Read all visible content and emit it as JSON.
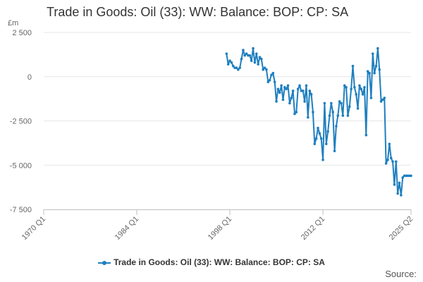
{
  "chart_data": {
    "type": "line",
    "title": "Trade in Goods: Oil (33): WW: Balance: BOP: CP: SA",
    "unit_label": "£m",
    "ylabel": "",
    "xlabel": "",
    "ylim": [
      -7500,
      2500
    ],
    "xlim": [
      1970.0,
      2025.25
    ],
    "y_ticks": [
      {
        "value": 2500,
        "label": "2 500"
      },
      {
        "value": 0,
        "label": "0"
      },
      {
        "value": -2500,
        "label": "-2 500"
      },
      {
        "value": -5000,
        "label": "-5 000"
      },
      {
        "value": -7500,
        "label": "-7 500"
      }
    ],
    "x_ticks": [
      {
        "value": 1970.0,
        "label": "1970 Q1"
      },
      {
        "value": 1984.0,
        "label": "1984 Q1"
      },
      {
        "value": 1998.0,
        "label": "1998 Q1"
      },
      {
        "value": 2012.0,
        "label": "2012 Q1"
      },
      {
        "value": 2025.25,
        "label": "2025 Q2"
      }
    ],
    "grid": "horizontal",
    "legend_position": "bottom",
    "color": "#1f7fbf",
    "series": [
      {
        "name": "Trade in Goods: Oil (33): WW: Balance: BOP: CP: SA",
        "x": [
          1997.5,
          1997.75,
          1998.0,
          1998.25,
          1998.5,
          1998.75,
          1999.0,
          1999.25,
          1999.5,
          1999.75,
          2000.0,
          2000.25,
          2000.5,
          2000.75,
          2001.0,
          2001.25,
          2001.5,
          2001.75,
          2002.0,
          2002.25,
          2002.5,
          2002.75,
          2003.0,
          2003.25,
          2003.5,
          2003.75,
          2004.0,
          2004.25,
          2004.5,
          2004.75,
          2005.0,
          2005.25,
          2005.5,
          2005.75,
          2006.0,
          2006.25,
          2006.5,
          2006.75,
          2007.0,
          2007.25,
          2007.5,
          2007.75,
          2008.0,
          2008.25,
          2008.5,
          2008.75,
          2009.0,
          2009.25,
          2009.5,
          2009.75,
          2010.0,
          2010.25,
          2010.5,
          2010.75,
          2011.0,
          2011.25,
          2011.5,
          2011.75,
          2012.0,
          2012.25,
          2012.5,
          2012.75,
          2013.0,
          2013.25,
          2013.5,
          2013.75,
          2014.0,
          2014.25,
          2014.5,
          2014.75,
          2015.0,
          2015.25,
          2015.5,
          2015.75,
          2016.0,
          2016.25,
          2016.5,
          2016.75,
          2017.0,
          2017.25,
          2017.5,
          2017.75,
          2018.0,
          2018.25,
          2018.5,
          2018.75,
          2019.0,
          2019.25,
          2019.5,
          2019.75,
          2020.0,
          2020.25,
          2020.5,
          2020.75,
          2021.0,
          2021.25,
          2021.5,
          2021.75,
          2022.0,
          2022.25,
          2022.5,
          2022.75,
          2023.0,
          2023.25,
          2023.5,
          2023.75,
          2024.0,
          2024.25,
          2024.5,
          2024.75,
          2025.0,
          2025.25
        ],
        "values": [
          1300,
          700,
          900,
          800,
          600,
          500,
          500,
          400,
          500,
          1000,
          1500,
          1200,
          1300,
          1200,
          1200,
          900,
          1600,
          800,
          1300,
          700,
          1100,
          1000,
          400,
          500,
          400,
          -300,
          -200,
          100,
          200,
          -300,
          -1400,
          -700,
          -900,
          -500,
          -1300,
          -600,
          -700,
          -500,
          -1500,
          -1200,
          -800,
          -2100,
          -2000,
          -700,
          -500,
          -800,
          -800,
          -1400,
          -500,
          -2300,
          -800,
          -1000,
          -2000,
          -3800,
          -3500,
          -2900,
          -3200,
          -3500,
          -4700,
          -1500,
          -3800,
          -3100,
          -2200,
          -1500,
          -2000,
          -4200,
          -2800,
          -2200,
          -1400,
          -1500,
          -2200,
          -500,
          -600,
          -2200,
          -1700,
          -700,
          600,
          -600,
          -1000,
          -1800,
          -500,
          -700,
          -1000,
          -600,
          -3300,
          300,
          200,
          -1200,
          1300,
          200,
          600,
          1600,
          400,
          -1400,
          -1300,
          -1200,
          -4900,
          -4700,
          -3800,
          -4600,
          -4800,
          -6100,
          -4800,
          -6600,
          -6000,
          -6700,
          -5700,
          -5600,
          -5600,
          -5600,
          -5600,
          -5600
        ]
      }
    ],
    "source_label": "Source:"
  }
}
